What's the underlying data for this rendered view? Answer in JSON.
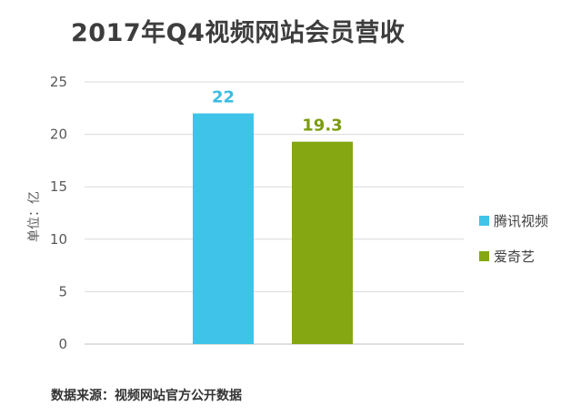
{
  "title": "2017年Q4视频网站会员营收",
  "footer": "数据来源：视频网站官方公开数据",
  "chart_data": {
    "type": "bar",
    "title": "2017年Q4视频网站会员营收",
    "ylabel": "单位：亿",
    "xlabel": "",
    "ylim": [
      0,
      25
    ],
    "yticks": [
      "0",
      "5",
      "10",
      "15",
      "20",
      "25"
    ],
    "grid": true,
    "legend": "right",
    "series": [
      {
        "name": "腾讯视频",
        "value": 22,
        "label": "22",
        "color": "#40c3e8",
        "label_color": "#3bbce2"
      },
      {
        "name": "爱奇艺",
        "value": 19.3,
        "label": "19.3",
        "color": "#84a712",
        "label_color": "#7a9c0f"
      }
    ]
  }
}
